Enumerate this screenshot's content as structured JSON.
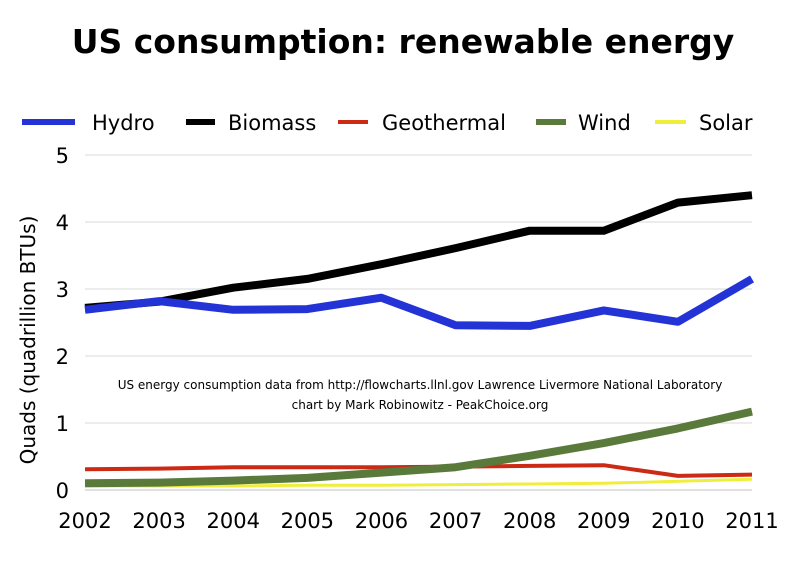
{
  "chart_data": {
    "type": "line",
    "title": "US consumption:  renewable energy",
    "ylabel": "Quads (quadrillion BTUs)",
    "xlabel": "",
    "x": [
      2002,
      2003,
      2004,
      2005,
      2006,
      2007,
      2008,
      2009,
      2010,
      2011
    ],
    "ylim": [
      0,
      5
    ],
    "yticks": [
      0,
      1,
      2,
      3,
      4,
      5
    ],
    "grid": "horizontal",
    "legend_position": "top",
    "series": [
      {
        "name": "Hydro",
        "color": "#2433d6",
        "values": [
          2.69,
          2.82,
          2.69,
          2.7,
          2.87,
          2.46,
          2.45,
          2.68,
          2.51,
          3.15
        ]
      },
      {
        "name": "Biomass",
        "color": "#000000",
        "values": [
          2.72,
          2.81,
          3.02,
          3.15,
          3.37,
          3.61,
          3.87,
          3.87,
          4.29,
          4.4
        ]
      },
      {
        "name": "Geothermal",
        "color": "#cc2a14",
        "values": [
          0.31,
          0.32,
          0.34,
          0.34,
          0.34,
          0.35,
          0.36,
          0.37,
          0.21,
          0.23
        ]
      },
      {
        "name": "Wind",
        "color": "#5a7a3c",
        "values": [
          0.1,
          0.11,
          0.14,
          0.18,
          0.26,
          0.34,
          0.51,
          0.7,
          0.92,
          1.17
        ]
      },
      {
        "name": "Solar",
        "color": "#f0ee3c",
        "values": [
          0.06,
          0.06,
          0.06,
          0.07,
          0.07,
          0.08,
          0.09,
          0.1,
          0.13,
          0.16
        ]
      }
    ],
    "annotations": [
      "US energy consumption data from http://flowcharts.llnl.gov Lawrence Livermore National Laboratory",
      "chart by Mark Robinowitz - PeakChoice.org"
    ]
  }
}
